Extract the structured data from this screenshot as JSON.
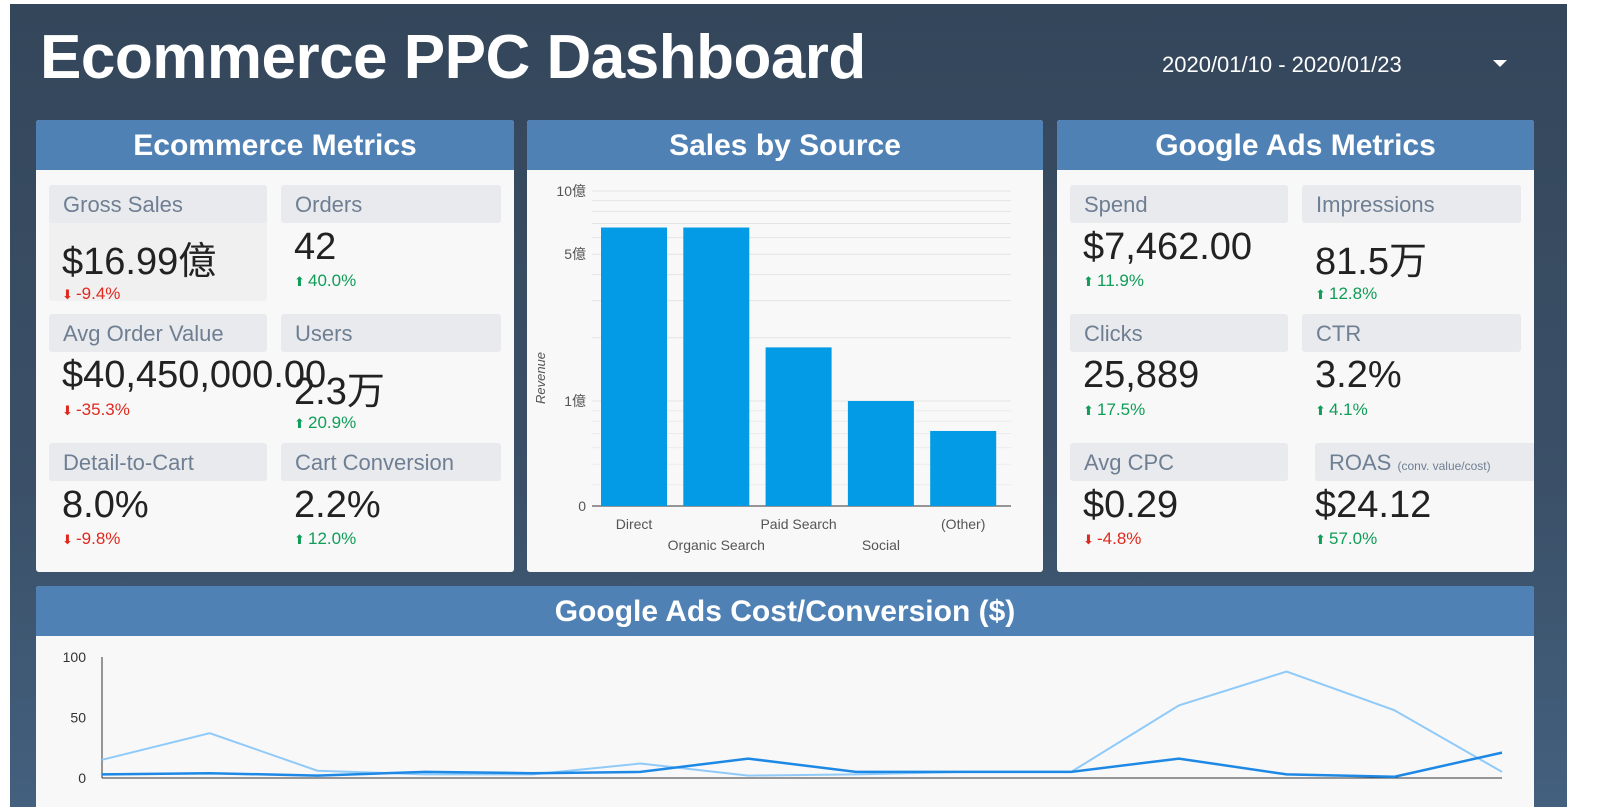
{
  "header": {
    "title": "Ecommerce PPC Dashboard",
    "date_range": "2020/01/10 - 2020/01/23"
  },
  "ecommerce": {
    "title": "Ecommerce Metrics",
    "tiles": [
      {
        "label": "Gross Sales",
        "value": "$16.99億",
        "delta": "-9.4%",
        "direction": "down"
      },
      {
        "label": "Orders",
        "value": "42",
        "delta": "40.0%",
        "direction": "up"
      },
      {
        "label": "Avg Order Value",
        "value": "$40,450,000.00",
        "delta": "-35.3%",
        "direction": "down"
      },
      {
        "label": "Users",
        "value": "2.3万",
        "delta": "20.9%",
        "direction": "up"
      },
      {
        "label": "Detail-to-Cart",
        "value": "8.0%",
        "delta": "-9.8%",
        "direction": "down"
      },
      {
        "label": "Cart Conversion",
        "value": "2.2%",
        "delta": "12.0%",
        "direction": "up"
      }
    ]
  },
  "sales_by_source": {
    "title": "Sales by Source",
    "ylabel": "Revenue",
    "y_ticks": [
      "10億",
      "5億",
      "1億",
      "0"
    ]
  },
  "google_ads": {
    "title": "Google Ads Metrics",
    "tiles": [
      {
        "label": "Spend",
        "value": "$7,462.00",
        "delta": "11.9%",
        "direction": "up"
      },
      {
        "label": "Impressions",
        "value": "81.5万",
        "delta": "12.8%",
        "direction": "up"
      },
      {
        "label": "Clicks",
        "value": "25,889",
        "delta": "17.5%",
        "direction": "up"
      },
      {
        "label": "CTR",
        "value": "3.2%",
        "delta": "4.1%",
        "direction": "up"
      },
      {
        "label": "Avg CPC",
        "value": "$0.29",
        "delta": "-4.8%",
        "direction": "down"
      },
      {
        "label": "ROAS",
        "label_note": "(conv. value/cost)",
        "value": "$24.12",
        "delta": "57.0%",
        "direction": "up"
      }
    ]
  },
  "cost_conversion": {
    "title": "Google Ads  Cost/Conversion ($)",
    "y_ticks": [
      "100",
      "50",
      "0"
    ]
  },
  "colors": {
    "background_top": "#34465a",
    "panel_header": "#4f81b5",
    "bar": "#039be5",
    "line_dark": "#1e88e5",
    "line_light": "#90caf9",
    "up": "#0f9d58",
    "down": "#e0291e"
  },
  "chart_data": [
    {
      "type": "bar",
      "title": "Sales by Source",
      "ylabel": "Revenue",
      "scale": "log",
      "categories": [
        "Direct",
        "Organic Search",
        "Paid Search",
        "Social",
        "(Other)"
      ],
      "values": [
        670000000,
        670000000,
        180000000,
        100000000,
        72000000
      ],
      "y_ticks": [
        0,
        100000000,
        500000000,
        1000000000
      ]
    },
    {
      "type": "line",
      "title": "Google Ads  Cost/Conversion ($)",
      "ylim": [
        0,
        100
      ],
      "series": [
        {
          "values": [
            15,
            37,
            6,
            3,
            3,
            12,
            2,
            3,
            5,
            5,
            60,
            88,
            56,
            5
          ]
        },
        {
          "values": [
            3,
            4,
            2,
            5,
            4,
            5,
            16,
            5,
            5,
            5,
            16,
            3,
            1,
            21
          ]
        }
      ]
    }
  ]
}
